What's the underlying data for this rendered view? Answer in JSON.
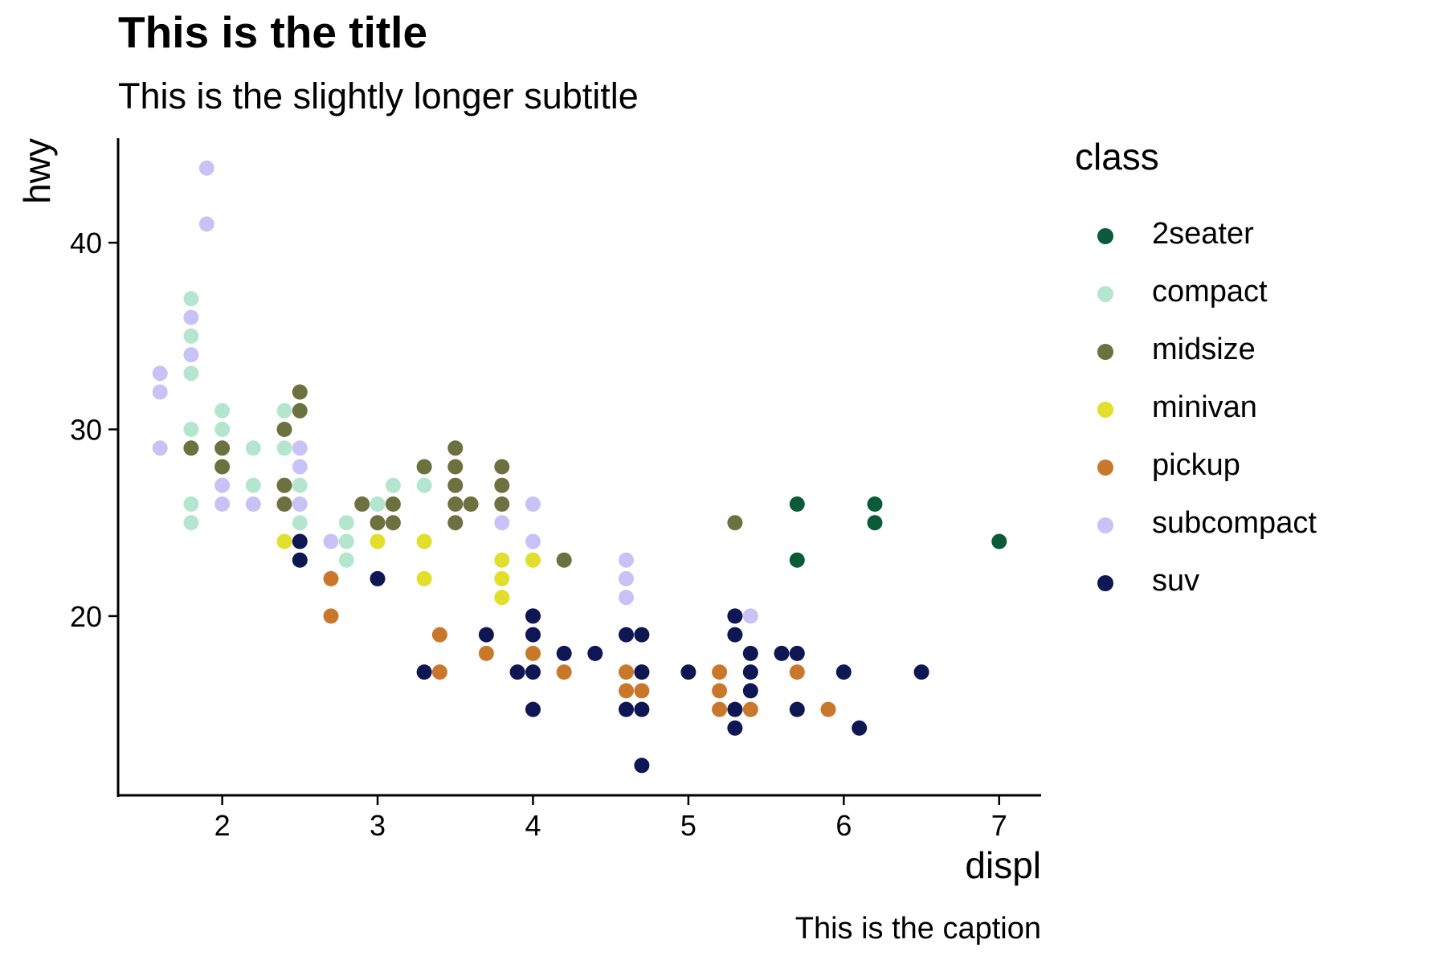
{
  "chart_data": {
    "type": "scatter",
    "title": "This is the title",
    "subtitle": "This is the slightly longer subtitle",
    "caption": "This is the caption",
    "xlabel": "displ",
    "ylabel": "hwy",
    "xlim": [
      1.33,
      7.27
    ],
    "ylim": [
      10.4,
      45.6
    ],
    "xticks": [
      2,
      3,
      4,
      5,
      6,
      7
    ],
    "yticks": [
      20,
      30,
      40
    ],
    "grid": false,
    "legend": {
      "title": "class",
      "position": "right"
    },
    "series": [
      {
        "name": "2seater",
        "color": "#0b5a3a",
        "points": [
          [
            5.7,
            26
          ],
          [
            5.7,
            23
          ],
          [
            6.2,
            26
          ],
          [
            6.2,
            25
          ],
          [
            7.0,
            24
          ]
        ]
      },
      {
        "name": "compact",
        "color": "#b4e6cf",
        "points": [
          [
            1.8,
            37
          ],
          [
            1.8,
            35
          ],
          [
            1.8,
            33
          ],
          [
            1.8,
            30
          ],
          [
            1.8,
            26
          ],
          [
            1.8,
            25
          ],
          [
            2.0,
            31
          ],
          [
            2.0,
            30
          ],
          [
            2.2,
            29
          ],
          [
            2.2,
            27
          ],
          [
            2.4,
            31
          ],
          [
            2.4,
            29
          ],
          [
            2.4,
            27
          ],
          [
            2.5,
            27
          ],
          [
            2.5,
            25
          ],
          [
            2.8,
            25
          ],
          [
            2.8,
            24
          ],
          [
            2.8,
            23
          ],
          [
            3.0,
            26
          ],
          [
            3.1,
            27
          ],
          [
            3.3,
            27
          ],
          [
            3.3,
            28
          ]
        ]
      },
      {
        "name": "midsize",
        "color": "#6b713f",
        "points": [
          [
            1.8,
            29
          ],
          [
            2.0,
            29
          ],
          [
            2.0,
            28
          ],
          [
            2.4,
            30
          ],
          [
            2.4,
            27
          ],
          [
            2.4,
            26
          ],
          [
            2.5,
            32
          ],
          [
            2.5,
            31
          ],
          [
            2.9,
            26
          ],
          [
            3.0,
            25
          ],
          [
            3.1,
            26
          ],
          [
            3.1,
            25
          ],
          [
            3.3,
            28
          ],
          [
            3.5,
            29
          ],
          [
            3.5,
            28
          ],
          [
            3.5,
            27
          ],
          [
            3.5,
            26
          ],
          [
            3.5,
            25
          ],
          [
            3.6,
            26
          ],
          [
            3.8,
            28
          ],
          [
            3.8,
            27
          ],
          [
            3.8,
            26
          ],
          [
            4.2,
            23
          ],
          [
            5.3,
            25
          ]
        ]
      },
      {
        "name": "minivan",
        "color": "#e1df2b",
        "points": [
          [
            2.4,
            24
          ],
          [
            3.0,
            24
          ],
          [
            3.3,
            24
          ],
          [
            3.3,
            22
          ],
          [
            3.8,
            23
          ],
          [
            3.8,
            22
          ],
          [
            3.8,
            21
          ],
          [
            4.0,
            23
          ]
        ]
      },
      {
        "name": "pickup",
        "color": "#c9782b",
        "points": [
          [
            2.7,
            22
          ],
          [
            2.7,
            20
          ],
          [
            3.4,
            19
          ],
          [
            3.4,
            17
          ],
          [
            3.7,
            18
          ],
          [
            4.0,
            20
          ],
          [
            4.0,
            18
          ],
          [
            4.2,
            17
          ],
          [
            4.6,
            17
          ],
          [
            4.6,
            16
          ],
          [
            4.7,
            17
          ],
          [
            4.7,
            16
          ],
          [
            5.2,
            17
          ],
          [
            5.2,
            16
          ],
          [
            5.2,
            15
          ],
          [
            5.4,
            15
          ],
          [
            5.7,
            17
          ],
          [
            5.9,
            15
          ]
        ]
      },
      {
        "name": "subcompact",
        "color": "#c9c2f7",
        "points": [
          [
            1.6,
            33
          ],
          [
            1.6,
            32
          ],
          [
            1.6,
            29
          ],
          [
            1.8,
            36
          ],
          [
            1.8,
            34
          ],
          [
            1.9,
            44
          ],
          [
            1.9,
            41
          ],
          [
            2.0,
            27
          ],
          [
            2.0,
            26
          ],
          [
            2.2,
            26
          ],
          [
            2.5,
            29
          ],
          [
            2.5,
            28
          ],
          [
            2.5,
            26
          ],
          [
            2.7,
            24
          ],
          [
            3.8,
            25
          ],
          [
            4.0,
            26
          ],
          [
            4.0,
            24
          ],
          [
            4.6,
            23
          ],
          [
            4.6,
            22
          ],
          [
            4.6,
            21
          ],
          [
            5.4,
            20
          ]
        ]
      },
      {
        "name": "suv",
        "color": "#0e1654",
        "points": [
          [
            2.5,
            24
          ],
          [
            2.5,
            23
          ],
          [
            3.0,
            22
          ],
          [
            3.3,
            17
          ],
          [
            3.7,
            19
          ],
          [
            3.9,
            17
          ],
          [
            4.0,
            20
          ],
          [
            4.0,
            19
          ],
          [
            4.0,
            17
          ],
          [
            4.0,
            15
          ],
          [
            4.2,
            18
          ],
          [
            4.4,
            18
          ],
          [
            4.6,
            19
          ],
          [
            4.6,
            15
          ],
          [
            4.7,
            19
          ],
          [
            4.7,
            17
          ],
          [
            4.7,
            15
          ],
          [
            4.7,
            12
          ],
          [
            5.0,
            17
          ],
          [
            5.3,
            20
          ],
          [
            5.3,
            19
          ],
          [
            5.3,
            15
          ],
          [
            5.3,
            14
          ],
          [
            5.4,
            18
          ],
          [
            5.4,
            17
          ],
          [
            5.4,
            16
          ],
          [
            5.6,
            18
          ],
          [
            5.7,
            18
          ],
          [
            5.7,
            15
          ],
          [
            6.0,
            17
          ],
          [
            6.1,
            14
          ],
          [
            6.5,
            17
          ]
        ]
      }
    ]
  }
}
